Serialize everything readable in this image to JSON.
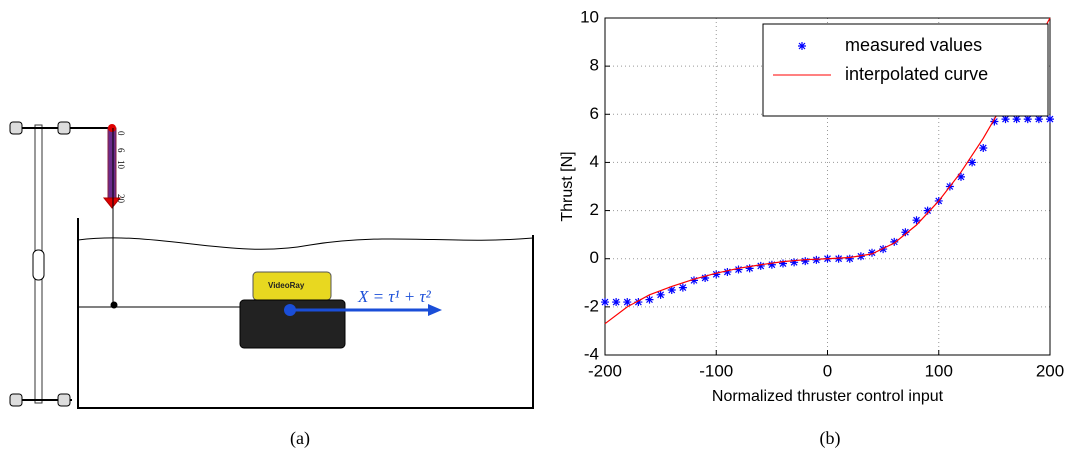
{
  "diagram": {
    "scale_labels": [
      "0",
      "6",
      "10",
      "20"
    ],
    "robot_label": "VideoRay",
    "force_label": "X = τ¹ + τ²",
    "caption": "(a)"
  },
  "chart_caption": "(b)",
  "chart_data": {
    "type": "scatter",
    "xlabel": "Normalized thruster control input",
    "ylabel": "Thrust [N]",
    "xlim": [
      -200,
      200
    ],
    "xticks": [
      -200,
      -100,
      0,
      100,
      200
    ],
    "ylim": [
      -4,
      10
    ],
    "yticks": [
      -4,
      -2,
      0,
      2,
      4,
      6,
      8,
      10
    ],
    "grid": true,
    "legend": "upper right",
    "series": [
      {
        "name": "measured values",
        "color": "#0000ff",
        "style": "markers",
        "x": [
          -200,
          -190,
          -180,
          -170,
          -160,
          -150,
          -140,
          -130,
          -120,
          -110,
          -100,
          -90,
          -80,
          -70,
          -60,
          -50,
          -40,
          -30,
          -20,
          -10,
          0,
          10,
          20,
          30,
          40,
          50,
          60,
          70,
          80,
          90,
          100,
          110,
          120,
          130,
          140,
          150,
          160,
          170,
          180,
          190,
          200
        ],
        "values": [
          -1.8,
          -1.8,
          -1.8,
          -1.8,
          -1.7,
          -1.5,
          -1.3,
          -1.2,
          -0.9,
          -0.8,
          -0.65,
          -0.55,
          -0.45,
          -0.4,
          -0.3,
          -0.25,
          -0.2,
          -0.15,
          -0.1,
          -0.05,
          0,
          0,
          0,
          0.1,
          0.25,
          0.4,
          0.7,
          1.1,
          1.6,
          2.0,
          2.4,
          3.0,
          3.4,
          4.0,
          4.6,
          5.7,
          5.8,
          5.8,
          5.8,
          5.8,
          5.8
        ]
      },
      {
        "name": "interpolated curve",
        "color": "#ff0000",
        "style": "line",
        "x": [
          -200,
          -180,
          -160,
          -140,
          -120,
          -100,
          -80,
          -60,
          -40,
          -20,
          0,
          20,
          40,
          60,
          80,
          100,
          120,
          140,
          160,
          180,
          200
        ],
        "values": [
          -2.7,
          -2.0,
          -1.5,
          -1.15,
          -0.85,
          -0.6,
          -0.4,
          -0.25,
          -0.12,
          -0.04,
          0,
          0.05,
          0.2,
          0.65,
          1.4,
          2.4,
          3.6,
          5.0,
          6.6,
          8.3,
          10.0
        ]
      }
    ]
  }
}
